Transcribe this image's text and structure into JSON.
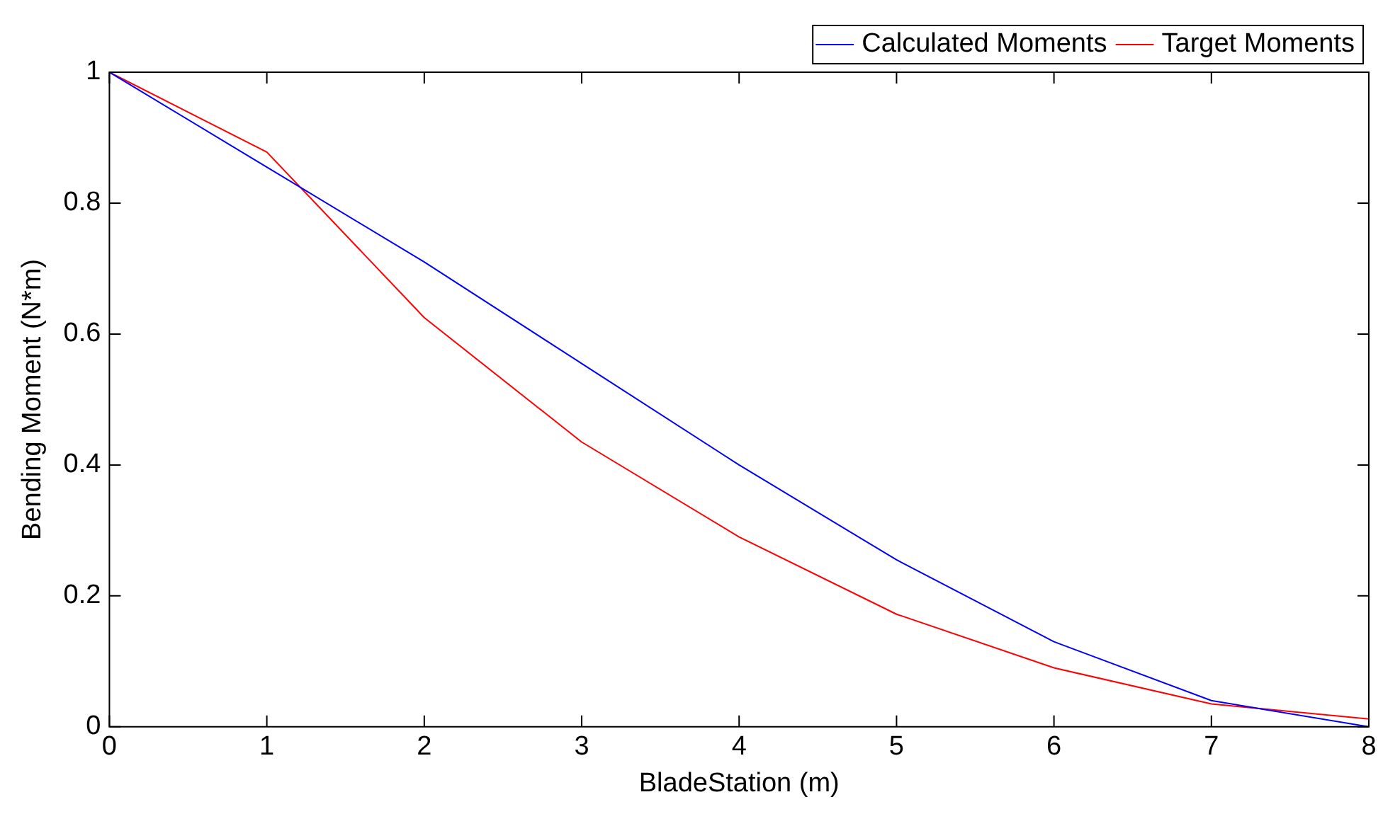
{
  "chart_data": {
    "type": "line",
    "xlabel": "BladeStation (m)",
    "ylabel": "Bending Moment (N*m)",
    "x": [
      0,
      1,
      2,
      3,
      4,
      5,
      6,
      7,
      8
    ],
    "series": [
      {
        "name": "Calculated Moments",
        "color": "#0000ff",
        "values": [
          1,
          0.855,
          0.71,
          0.555,
          0.4,
          0.255,
          0.13,
          0.04,
          0.0
        ]
      },
      {
        "name": "Target Moments",
        "color": "#ff0000",
        "values": [
          1,
          0.878,
          0.625,
          0.435,
          0.29,
          0.172,
          0.09,
          0.035,
          0.012
        ]
      }
    ],
    "xlim": [
      0,
      8
    ],
    "xticks": [
      0,
      1,
      2,
      3,
      4,
      5,
      6,
      7,
      8
    ],
    "ylim": [
      0,
      1
    ],
    "yticks": [
      0,
      0.2,
      0.4,
      0.6,
      0.8,
      1
    ],
    "grid": false,
    "legend": "top right",
    "marker": "none",
    "line_style": "solid"
  }
}
